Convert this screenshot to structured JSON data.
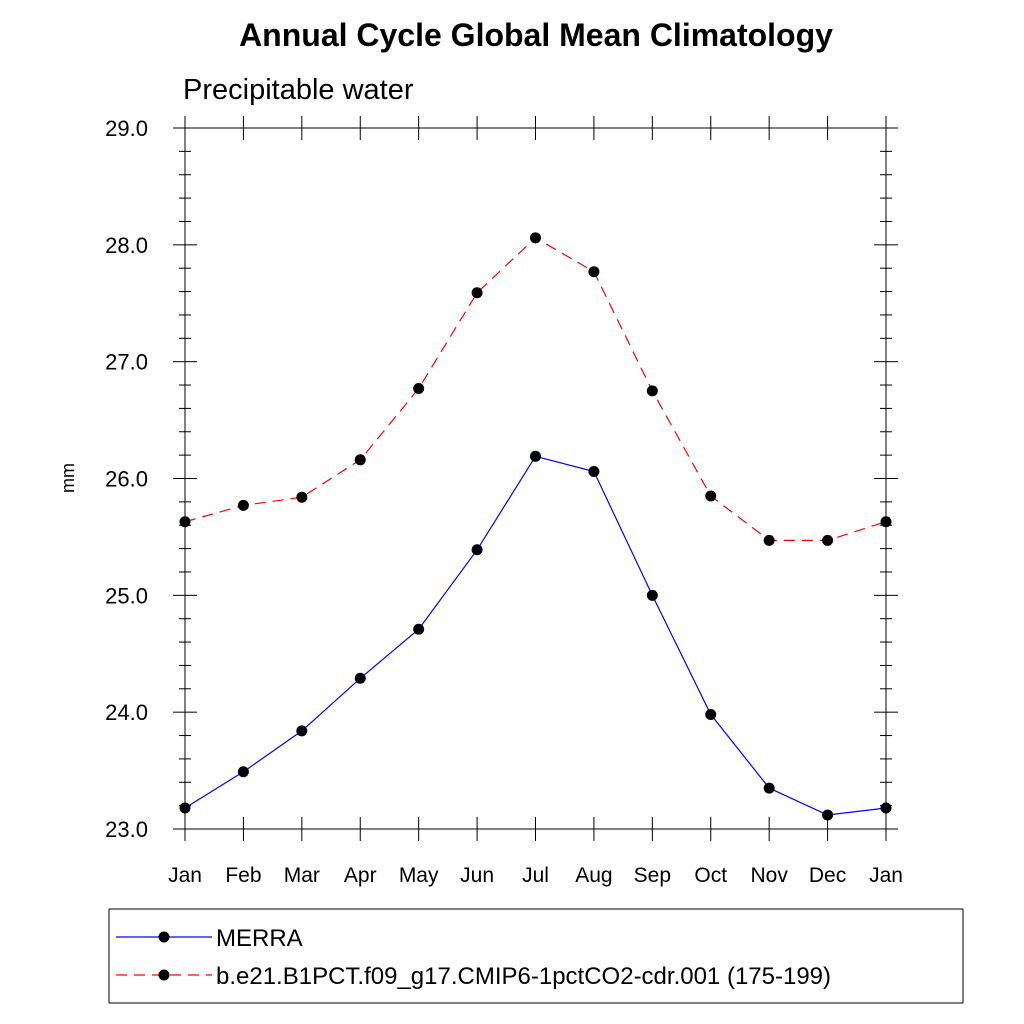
{
  "chart_data": {
    "type": "line",
    "title": "Annual Cycle Global Mean Climatology",
    "subtitle": "Precipitable water",
    "xlabel": "",
    "ylabel": "mm",
    "categories": [
      "Jan",
      "Feb",
      "Mar",
      "Apr",
      "May",
      "Jun",
      "Jul",
      "Aug",
      "Sep",
      "Oct",
      "Nov",
      "Dec",
      "Jan"
    ],
    "ylim": [
      23.0,
      29.0
    ],
    "yticks": [
      "23.0",
      "24.0",
      "25.0",
      "26.0",
      "27.0",
      "28.0",
      "29.0"
    ],
    "series": [
      {
        "name": "MERRA",
        "color": "#0000ff",
        "dash": "solid",
        "marker": "filled-circle",
        "values": [
          23.18,
          23.49,
          23.84,
          24.29,
          24.71,
          25.39,
          26.19,
          26.06,
          25.0,
          23.98,
          23.35,
          23.12,
          23.18
        ]
      },
      {
        "name": "b.e21.B1PCT.f09_g17.CMIP6-1pctCO2-cdr.001 (175-199)",
        "color": "#ff0000",
        "dash": "dashed",
        "marker": "filled-circle",
        "values": [
          25.63,
          25.77,
          25.84,
          26.16,
          26.77,
          27.59,
          28.06,
          27.77,
          26.75,
          25.85,
          25.47,
          25.47,
          25.63
        ]
      }
    ],
    "legend": {
      "position": "bottom"
    }
  }
}
